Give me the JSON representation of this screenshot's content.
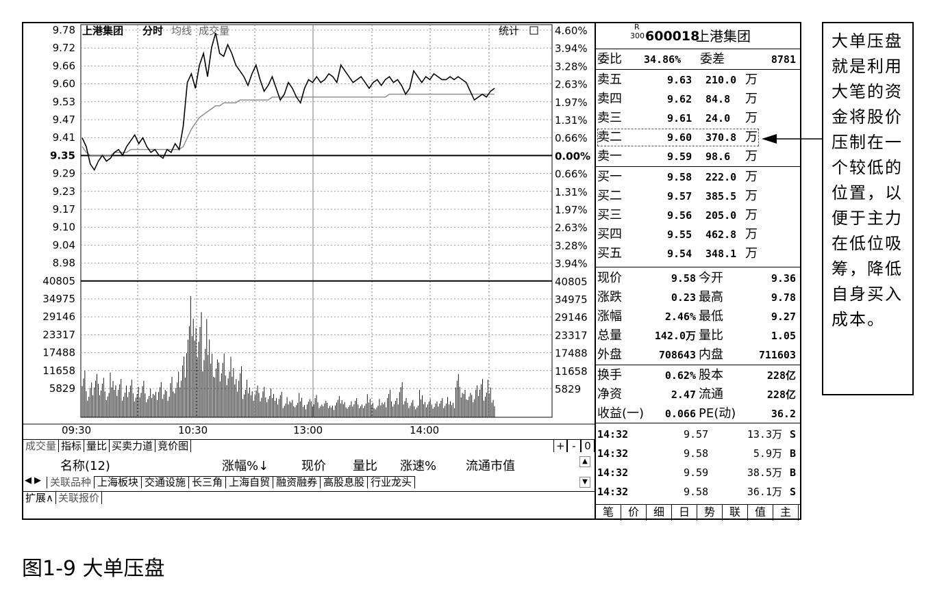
{
  "chart": {
    "stock_name": "上港集团",
    "tabs": [
      "分时",
      "均线",
      "成交量"
    ],
    "stats_label": "统计",
    "price_ticks": [
      "9.78",
      "9.72",
      "9.66",
      "9.60",
      "9.53",
      "9.47",
      "9.41",
      "9.35",
      "9.29",
      "9.23",
      "9.17",
      "9.10",
      "9.04",
      "8.98"
    ],
    "pct_ticks": [
      "4.60%",
      "3.94%",
      "3.28%",
      "2.63%",
      "1.97%",
      "1.31%",
      "0.66%",
      "0.00%",
      "0.66%",
      "1.31%",
      "1.97%",
      "2.63%",
      "3.28%",
      "3.94%"
    ],
    "vol_ticks": [
      "40805",
      "34975",
      "29146",
      "23317",
      "17488",
      "11658",
      "5829"
    ],
    "time_ticks": [
      "09:30",
      "10:30",
      "13:00",
      "14:00"
    ],
    "prev_close": 9.35,
    "price_series": [
      9.41,
      9.38,
      9.32,
      9.3,
      9.33,
      9.35,
      9.33,
      9.34,
      9.36,
      9.37,
      9.35,
      9.38,
      9.4,
      9.42,
      9.39,
      9.41,
      9.38,
      9.36,
      9.37,
      9.35,
      9.34,
      9.37,
      9.36,
      9.39,
      9.37,
      9.45,
      9.6,
      9.63,
      9.58,
      9.66,
      9.7,
      9.62,
      9.72,
      9.77,
      9.7,
      9.69,
      9.73,
      9.7,
      9.66,
      9.64,
      9.62,
      9.59,
      9.63,
      9.66,
      9.61,
      9.57,
      9.59,
      9.62,
      9.58,
      9.54,
      9.56,
      9.6,
      9.58,
      9.55,
      9.53,
      9.58,
      9.61,
      9.6,
      9.62,
      9.6,
      9.61,
      9.63,
      9.62,
      9.6,
      9.66,
      9.64,
      9.62,
      9.6,
      9.61,
      9.62,
      9.6,
      9.58,
      9.6,
      9.61,
      9.59,
      9.61,
      9.62,
      9.6,
      9.61,
      9.59,
      9.56,
      9.58,
      9.64,
      9.62,
      9.6,
      9.62,
      9.61,
      9.63,
      9.62,
      9.61,
      9.61,
      9.62,
      9.61,
      9.62,
      9.61,
      9.6,
      9.57,
      9.54,
      9.55,
      9.56,
      9.55,
      9.57,
      9.58
    ],
    "avg_series": [
      9.38,
      9.36,
      9.35,
      9.35,
      9.35,
      9.35,
      9.35,
      9.35,
      9.36,
      9.36,
      9.36,
      9.36,
      9.37,
      9.37,
      9.37,
      9.37,
      9.37,
      9.37,
      9.37,
      9.37,
      9.37,
      9.37,
      9.37,
      9.37,
      9.37,
      9.38,
      9.41,
      9.44,
      9.46,
      9.48,
      9.49,
      9.5,
      9.51,
      9.52,
      9.52,
      9.53,
      9.53,
      9.53,
      9.53,
      9.54,
      9.54,
      9.54,
      9.54,
      9.54,
      9.54,
      9.54,
      9.54,
      9.55,
      9.55,
      9.55,
      9.55,
      9.55,
      9.55,
      9.55,
      9.55,
      9.55,
      9.55,
      9.55,
      9.55,
      9.55,
      9.55,
      9.55,
      9.55,
      9.55,
      9.55,
      9.55,
      9.55,
      9.55,
      9.55,
      9.55,
      9.55,
      9.55,
      9.55,
      9.55,
      9.55,
      9.55,
      9.56,
      9.56,
      9.56,
      9.56,
      9.56,
      9.56,
      9.56,
      9.56,
      9.56,
      9.56,
      9.56,
      9.56,
      9.56,
      9.56,
      9.56,
      9.56,
      9.56,
      9.56,
      9.56,
      9.56,
      9.56,
      9.56,
      9.56,
      9.56,
      9.56,
      9.56,
      9.56
    ],
    "volume_series": [
      17000,
      9000,
      12000,
      15000,
      11000,
      13000,
      8000,
      14000,
      10000,
      12000,
      9000,
      11000,
      13000,
      8000,
      10000,
      12000,
      7000,
      9000,
      8000,
      11000,
      10000,
      9000,
      14000,
      12000,
      15000,
      20000,
      30000,
      38000,
      28000,
      33000,
      25000,
      34000,
      22000,
      20000,
      18000,
      21000,
      15000,
      19000,
      12000,
      16000,
      10000,
      13000,
      9000,
      11000,
      8000,
      10000,
      7000,
      9000,
      6000,
      8000,
      5000,
      7000,
      6000,
      5000,
      8000,
      4000,
      6000,
      5000,
      7000,
      4000,
      6000,
      5000,
      4000,
      6000,
      7000,
      5000,
      4000,
      5000,
      6000,
      4000,
      5000,
      8000,
      5000,
      4000,
      6000,
      5000,
      9000,
      5000,
      6000,
      11000,
      7000,
      5000,
      6000,
      4000,
      9000,
      5000,
      6000,
      4000,
      5000,
      6000,
      5000,
      7000,
      5000,
      15000,
      10000,
      9000,
      8000,
      7000,
      10000,
      12000,
      9000,
      13000,
      6000
    ]
  },
  "toolbar": {
    "buttons": [
      "成交量",
      "指标",
      "量比",
      "买卖力道",
      "竞价图"
    ],
    "right_buttons": [
      "+",
      "-",
      "0"
    ]
  },
  "list_header": {
    "name_col": "名称(12)",
    "cols": [
      "涨幅%↓",
      "现价",
      "量比",
      "涨速%",
      "流通市值"
    ]
  },
  "tabs": [
    "关联品种",
    "上海板块",
    "交通设施",
    "长三角",
    "上海自贸",
    "融资融券",
    "高股息股",
    "行业龙头"
  ],
  "footer": {
    "expand": "扩展∧",
    "related": "关联报价"
  },
  "quote": {
    "badge_top": "R",
    "badge_bottom": "300",
    "code": "600018",
    "name": "上港集团",
    "weibi_label": "委比",
    "weibi_value": "34.86%",
    "weicha_label": "委差",
    "weicha_value": "8781",
    "asks": [
      {
        "label": "卖五",
        "price": "9.63",
        "vol": "210.0",
        "unit": "万"
      },
      {
        "label": "卖四",
        "price": "9.62",
        "vol": "84.8",
        "unit": "万"
      },
      {
        "label": "卖三",
        "price": "9.61",
        "vol": "24.0",
        "unit": "万"
      },
      {
        "label": "卖二",
        "price": "9.60",
        "vol": "370.8",
        "unit": "万"
      },
      {
        "label": "卖一",
        "price": "9.59",
        "vol": "98.6",
        "unit": "万"
      }
    ],
    "bids": [
      {
        "label": "买一",
        "price": "9.58",
        "vol": "222.0",
        "unit": "万"
      },
      {
        "label": "买二",
        "price": "9.57",
        "vol": "385.5",
        "unit": "万"
      },
      {
        "label": "买三",
        "price": "9.56",
        "vol": "205.0",
        "unit": "万"
      },
      {
        "label": "买四",
        "price": "9.55",
        "vol": "462.8",
        "unit": "万"
      },
      {
        "label": "买五",
        "price": "9.54",
        "vol": "348.1",
        "unit": "万"
      }
    ],
    "stats1": [
      {
        "l1": "现价",
        "v1": "9.58",
        "l2": "今开",
        "v2": "9.36"
      },
      {
        "l1": "涨跌",
        "v1": "0.23",
        "l2": "最高",
        "v2": "9.78"
      },
      {
        "l1": "涨幅",
        "v1": "2.46%",
        "l2": "最低",
        "v2": "9.27"
      },
      {
        "l1": "总量",
        "v1": "142.0万",
        "l2": "量比",
        "v2": "1.05"
      },
      {
        "l1": "外盘",
        "v1": "708643",
        "l2": "内盘",
        "v2": "711603"
      }
    ],
    "stats2": [
      {
        "l1": "换手",
        "v1": "0.62%",
        "l2": "股本",
        "v2": "228亿"
      },
      {
        "l1": "净资",
        "v1": "2.47",
        "l2": "流通",
        "v2": "228亿"
      },
      {
        "l1": "收益(一)",
        "v1": "0.066",
        "l2": "PE(动)",
        "v2": "36.2"
      }
    ],
    "ticks": [
      {
        "time": "14:32",
        "price": "9.57",
        "vol": "13.3万",
        "side": "S"
      },
      {
        "time": "14:32",
        "price": "9.58",
        "vol": "5.9万",
        "side": "B"
      },
      {
        "time": "14:32",
        "price": "9.59",
        "vol": "38.5万",
        "side": "B"
      },
      {
        "time": "14:32",
        "price": "9.58",
        "vol": "36.1万",
        "side": "S"
      }
    ],
    "bottom_tabs": [
      "笔",
      "价",
      "细",
      "日",
      "势",
      "联",
      "值",
      "主"
    ]
  },
  "annotation": "大单压盘就是利用大笔的资金将股价压制在一个较低的位置，以便于主力在低位吸筹，降低自身买入成本。",
  "caption": "图1-9 大单压盘"
}
